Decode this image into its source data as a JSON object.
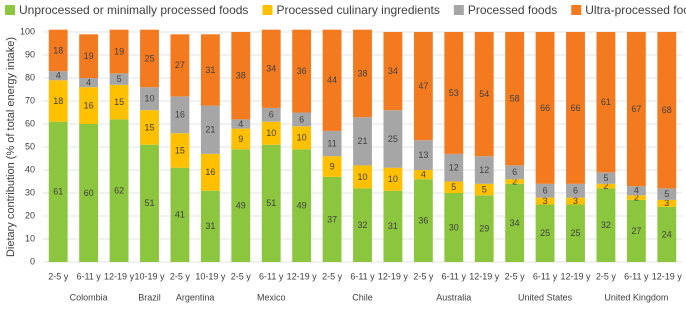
{
  "chart_data": {
    "type": "stacked_bar",
    "y_label": "Dietary contribution (% of total energy intake)",
    "categories": [
      "2-5 y",
      "6-11 y",
      "12-19 y",
      "10-19 y",
      "2-5 y",
      "10-19 y",
      "2-5 y",
      "6-11 y",
      "12-19 y",
      "2-5 y",
      "6-11 y",
      "12-19 y",
      "2-5 y",
      "6-11 y",
      "12-19 y",
      "2-5 y",
      "6-11 y",
      "12-19 y",
      "2-5 y",
      "6-11 y",
      "12-19 y"
    ],
    "country": [
      "Colombia",
      "Colombia",
      "Colombia",
      "Brazil",
      "Argentina",
      "Argentina",
      "Mexico",
      "Mexico",
      "Mexico",
      "Chile",
      "Chile",
      "Chile",
      "Australia",
      "Australia",
      "Australia",
      "United States",
      "United States",
      "United States",
      "United Kingdom",
      "United Kingdom",
      "United Kingdom"
    ],
    "series": [
      {
        "name": "Unprocessed or minimally processed foods",
        "color": "#8cc63f",
        "values": [
          61,
          60,
          62,
          51,
          41,
          31,
          49,
          51,
          49,
          37,
          32,
          31,
          36,
          30,
          29,
          34,
          25,
          25,
          32,
          27,
          24
        ]
      },
      {
        "name": "Processed culinary ingredients",
        "color": "#ffc000",
        "values": [
          18,
          16,
          15,
          15,
          15,
          16,
          9,
          10,
          10,
          9,
          10,
          10,
          4,
          5,
          5,
          2,
          3,
          3,
          2,
          2,
          3
        ]
      },
      {
        "name": "Processed foods",
        "color": "#a6a6a6",
        "values": [
          4,
          4,
          5,
          10,
          16,
          21,
          4,
          6,
          6,
          11,
          21,
          25,
          13,
          12,
          12,
          6,
          6,
          6,
          5,
          4,
          5
        ]
      },
      {
        "name": "Ultra-processed foods",
        "color": "#f47a20",
        "values": [
          18,
          19,
          19,
          25,
          27,
          31,
          38,
          34,
          36,
          44,
          38,
          34,
          47,
          53,
          54,
          58,
          66,
          66,
          61,
          67,
          68
        ]
      }
    ],
    "ylim": [
      0,
      100
    ],
    "yticks": [
      0,
      10,
      20,
      30,
      40,
      50,
      60,
      70,
      80,
      90,
      100
    ],
    "grid": true,
    "legend": "top"
  }
}
